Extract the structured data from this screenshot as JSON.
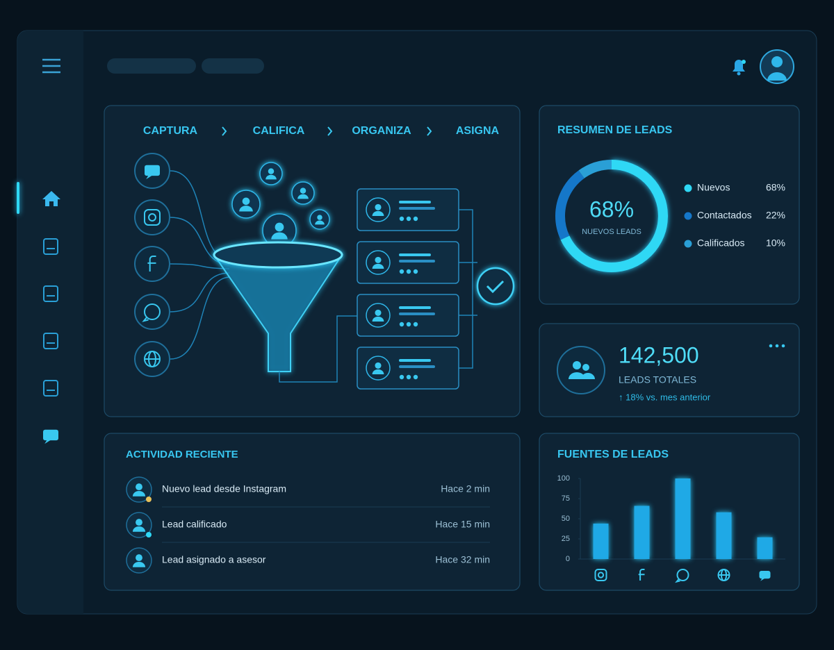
{
  "funnel": {
    "steps": [
      "CAPTURA",
      "CALIFICA",
      "ORGANIZA",
      "ASIGNA"
    ]
  },
  "totals": {
    "value": "142,500",
    "label": "LEADS TOTALES",
    "change": "↑ 18% vs. mes anterior"
  },
  "activity": {
    "title": "ACTIVIDAD RECIENTE",
    "items": [
      {
        "text": "Nuevo lead desde Instagram",
        "time": "Hace 2 min"
      },
      {
        "text": "Lead calificado",
        "time": "Hace 15 min"
      },
      {
        "text": "Lead asignado a asesor",
        "time": "Hace 32 min"
      }
    ]
  },
  "chart_data": [
    {
      "type": "donut",
      "title": "RESUMEN DE LEADS",
      "center_label": "NUEVOS LEADS",
      "categories": [
        "Nuevos",
        "Contactados",
        "Calificados"
      ],
      "values": [
        68,
        22,
        10
      ],
      "value_labels": [
        "68%",
        "22%",
        "10%"
      ],
      "colors": [
        "#2fd8f5",
        "#1577c9",
        "#2a9fd6"
      ]
    },
    {
      "type": "bar",
      "title": "FUENTES DE LEADS",
      "categories": [
        null,
        null,
        null,
        null,
        null
      ],
      "values": [
        44,
        66,
        100,
        58,
        27
      ],
      "color": "#1fa9e6",
      "ylim": [
        0,
        100
      ],
      "yticks": [
        0,
        25,
        50,
        75,
        100
      ],
      "grid": false
    }
  ]
}
